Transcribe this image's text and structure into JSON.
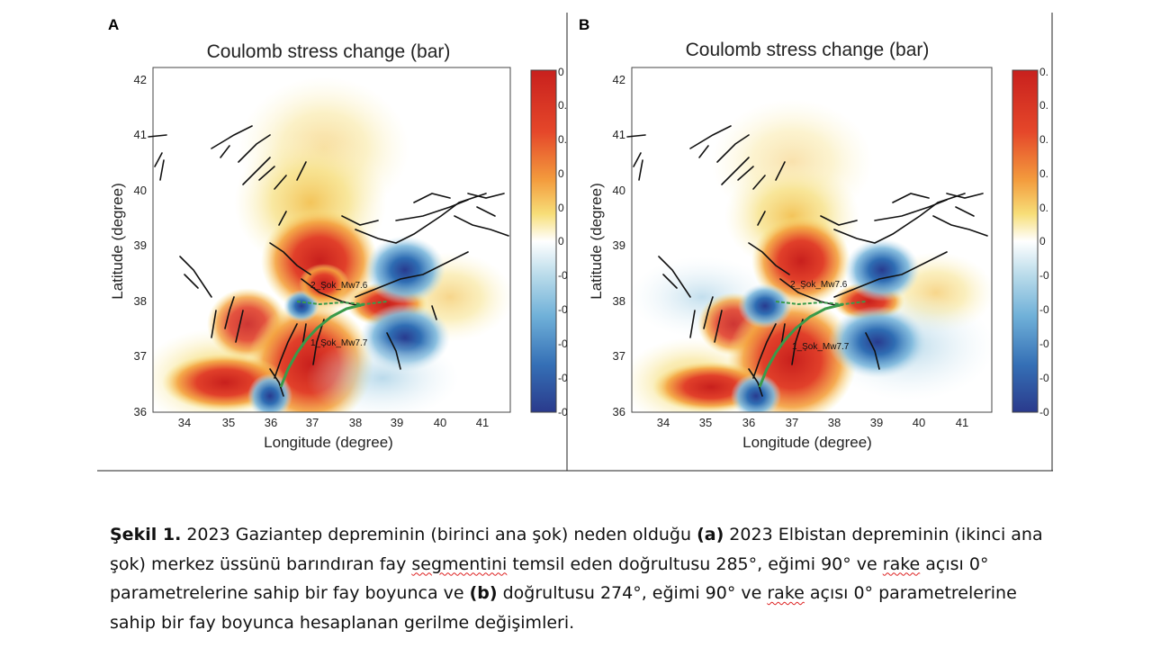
{
  "figure": {
    "panels": [
      {
        "letter": "A",
        "title": "Coulomb stress change (bar)",
        "xlabel": "Longitude (degree)",
        "ylabel": "Latitude  (degree)",
        "x_ticks": [
          "34",
          "35",
          "36",
          "37",
          "38",
          "39",
          "40",
          "41"
        ],
        "y_ticks": [
          "42",
          "41",
          "40",
          "39",
          "38",
          "37",
          "36"
        ],
        "colorbar_ticks": [
          "0",
          "0.",
          "0.",
          "0",
          "0",
          "0",
          "-0",
          "-0",
          "-0",
          "-0",
          "-0"
        ],
        "label_second_shock": "2_Şok_Mw7.6",
        "label_first_shock": "1_Şok_Mw7.7"
      },
      {
        "letter": "B",
        "title": "Coulomb stress change (bar)",
        "xlabel": "Longitude (degree)",
        "ylabel": "Latitude  (degree)",
        "x_ticks": [
          "34",
          "35",
          "36",
          "37",
          "38",
          "39",
          "40",
          "41"
        ],
        "y_ticks": [
          "42",
          "41",
          "40",
          "39",
          "38",
          "37",
          "36"
        ],
        "colorbar_ticks": [
          "0.",
          "0.",
          "0.",
          "0.",
          "0.",
          "0",
          "-0",
          "-0",
          "-0",
          "-0",
          "-0"
        ],
        "label_second_shock": "2_Şok_Mw7.6",
        "label_first_shock": "1_Şok_Mw7.7"
      }
    ],
    "colors": {
      "red": "#d7301f",
      "orange": "#f5a13a",
      "yellow": "#f7e27a",
      "white": "#ffffff",
      "lightblue": "#a8d1e6",
      "blue": "#2e6fb3",
      "darkblue": "#283b8f",
      "fault_line": "#111111",
      "rupture": "#3a9a4a"
    }
  },
  "caption": {
    "label": "Şekil 1.",
    "p1": " 2023  Gaziantep depreminin (birinci ana şok)  neden olduğu ",
    "a": "(a)",
    "p2": " 2023  Elbistan depreminin (ikinci ana şok) merkez üssünü barındıran fay ",
    "w_segment": "segmentini",
    "p3": " temsil eden doğrultusu 285°, eğimi 90° ve ",
    "w_rake1": "rake",
    "p4": " açısı 0°  parametrelerine sahip bir fay boyunca ve ",
    "b": "(b)",
    "p5": " doğrultusu 274°, eğimi 90° ve ",
    "w_rake2": "rake",
    "p6": " açısı 0° parametrelerine sahip bir fay  boyunca hesaplanan gerilme değişimleri."
  }
}
